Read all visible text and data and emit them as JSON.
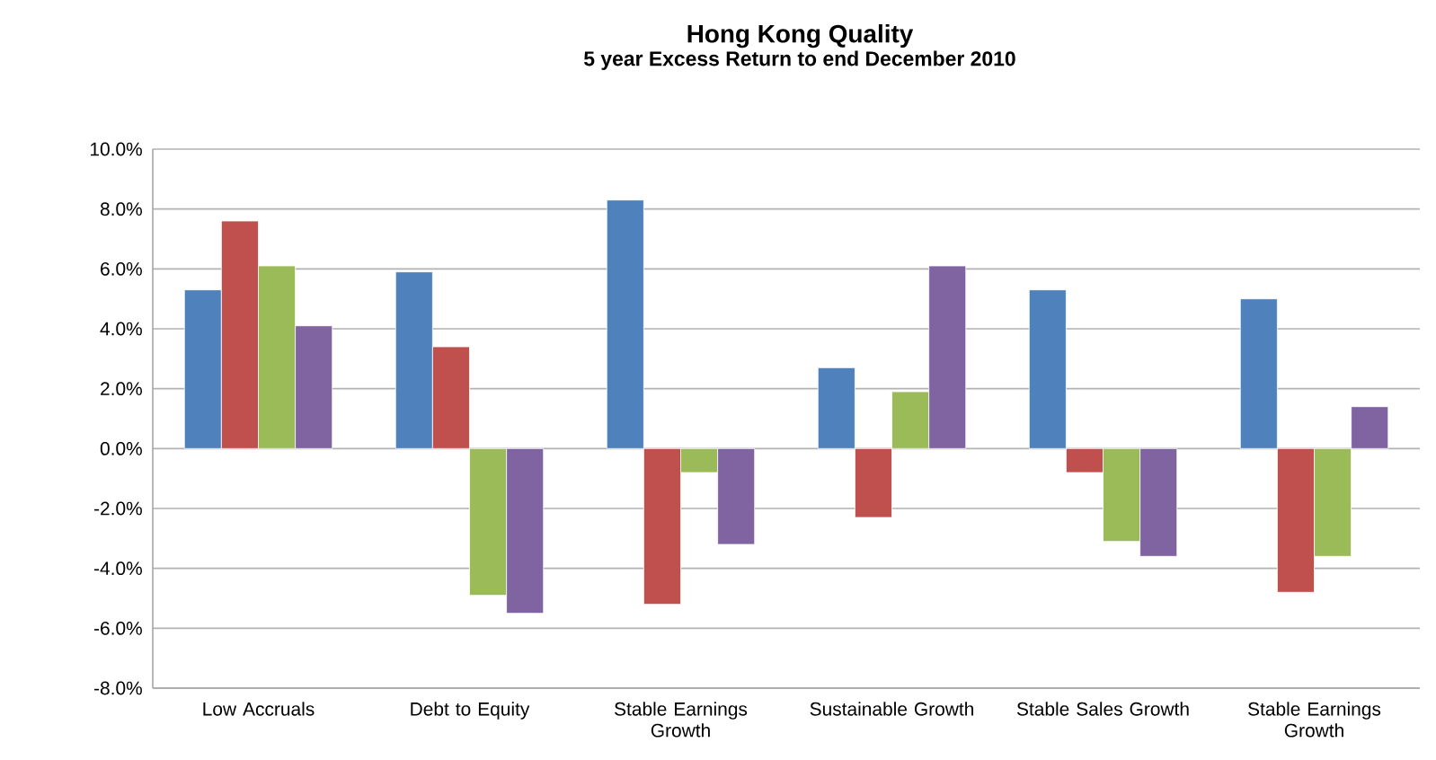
{
  "chart_data": {
    "type": "bar",
    "title": "Hong Kong Quality",
    "subtitle": "5 year Excess Return to end December 2010",
    "categories": [
      "Low Accruals",
      "Debt to Equity",
      "Stable Earnings Growth",
      "Sustainable Growth",
      "Stable Sales Growth",
      "Stable Earnings Growth"
    ],
    "series": [
      {
        "color": "#4f81bd",
        "values": [
          5.3,
          5.9,
          8.3,
          2.7,
          5.3,
          5.0
        ]
      },
      {
        "color": "#c0504d",
        "values": [
          7.6,
          3.4,
          -5.2,
          -2.3,
          -0.8,
          -4.8
        ]
      },
      {
        "color": "#9bbb59",
        "values": [
          6.1,
          -4.9,
          -0.8,
          1.9,
          -3.1,
          -3.6
        ]
      },
      {
        "color": "#8064a2",
        "values": [
          4.1,
          -5.5,
          -3.2,
          6.1,
          -3.6,
          1.4
        ]
      }
    ],
    "ylim": [
      -8,
      10
    ],
    "yticks": [
      {
        "value": -8,
        "label": "-8.0%"
      },
      {
        "value": -6,
        "label": "-6.0%"
      },
      {
        "value": -4,
        "label": "-4.0%"
      },
      {
        "value": -2,
        "label": "-2.0%"
      },
      {
        "value": 0,
        "label": "0.0%"
      },
      {
        "value": 2,
        "label": "2.0%"
      },
      {
        "value": 4,
        "label": "4.0%"
      },
      {
        "value": 6,
        "label": "6.0%"
      },
      {
        "value": 8,
        "label": "8.0%"
      },
      {
        "value": 10,
        "label": "10.0%"
      }
    ],
    "grid": "y"
  }
}
